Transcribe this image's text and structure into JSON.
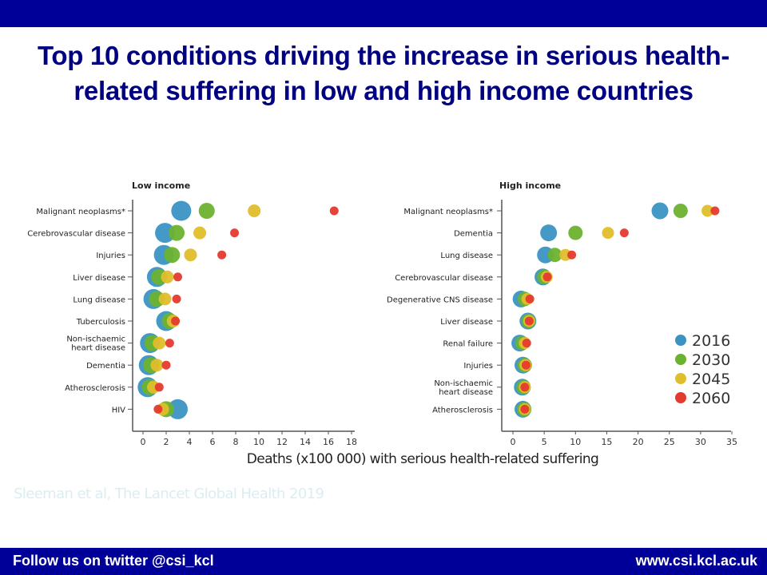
{
  "slide": {
    "title": "Top 10 conditions driving the increase in serious health-related suffering in low and high income countries",
    "common_xlabel": "Deaths (x100 000) with serious health-related suffering",
    "citation": "Sleeman et al, The Lancet Global Health 2019",
    "footer_left": "Follow us on twitter @csi_kcl",
    "footer_right": "www.csi.kcl.ac.uk",
    "colors": {
      "bar": "#000099",
      "title": "#000080"
    }
  },
  "chart_data": [
    {
      "type": "scatter",
      "subtype": "bubble-dot-plot",
      "title": "Low income",
      "xlabel": "Deaths (x100 000) with serious health-related suffering",
      "xlim": [
        0,
        18
      ],
      "xticks": [
        0,
        2,
        4,
        6,
        8,
        10,
        12,
        14,
        16,
        18
      ],
      "grid": false,
      "categories": [
        "Malignant neoplasms*",
        "Cerebrovascular disease",
        "Injuries",
        "Liver disease",
        "Lung disease",
        "Tuberculosis",
        "Non-ischaemic heart disease",
        "Dementia",
        "Atherosclerosis",
        "HIV"
      ],
      "series": [
        {
          "name": "2016",
          "color": "#3a93c3",
          "values": [
            3.3,
            1.9,
            1.8,
            1.2,
            0.9,
            2.0,
            0.6,
            0.5,
            0.4,
            3.0
          ]
        },
        {
          "name": "2030",
          "color": "#6bb22f",
          "values": [
            5.5,
            2.9,
            2.5,
            1.4,
            1.2,
            2.3,
            0.8,
            0.7,
            0.6,
            2.0
          ]
        },
        {
          "name": "2045",
          "color": "#e0be2b",
          "values": [
            9.6,
            4.9,
            4.1,
            2.1,
            1.9,
            2.6,
            1.4,
            1.2,
            0.9,
            1.7
          ]
        },
        {
          "name": "2060",
          "color": "#e53a2f",
          "values": [
            16.5,
            7.9,
            6.8,
            3.0,
            2.9,
            2.8,
            2.3,
            2.0,
            1.4,
            1.3
          ]
        }
      ]
    },
    {
      "type": "scatter",
      "subtype": "bubble-dot-plot",
      "title": "High income",
      "xlabel": "Deaths (x100 000) with serious health-related suffering",
      "xlim": [
        0,
        35
      ],
      "xticks": [
        0,
        5,
        10,
        15,
        20,
        25,
        30,
        35
      ],
      "grid": false,
      "legend": {
        "position": "bottom-right",
        "entries": [
          "2016",
          "2030",
          "2045",
          "2060"
        ]
      },
      "categories": [
        "Malignant neoplasms*",
        "Dementia",
        "Lung disease",
        "Cerebrovascular disease",
        "Degenerative CNS disease",
        "Liver disease",
        "Renal failure",
        "Injuries",
        "Non-ischaemic heart disease",
        "Atherosclerosis"
      ],
      "series": [
        {
          "name": "2016",
          "color": "#3a93c3",
          "values": [
            23.5,
            5.7,
            5.2,
            4.8,
            1.3,
            2.4,
            1.1,
            1.6,
            1.5,
            1.6
          ]
        },
        {
          "name": "2030",
          "color": "#6bb22f",
          "values": [
            26.8,
            10.0,
            6.7,
            5.0,
            1.9,
            2.5,
            1.5,
            1.9,
            1.7,
            1.8
          ]
        },
        {
          "name": "2045",
          "color": "#e0be2b",
          "values": [
            31.1,
            15.2,
            8.4,
            5.4,
            2.3,
            2.6,
            1.9,
            2.0,
            1.9,
            1.9
          ]
        },
        {
          "name": "2060",
          "color": "#e53a2f",
          "values": [
            32.3,
            17.8,
            9.4,
            5.5,
            2.7,
            2.6,
            2.2,
            2.1,
            1.9,
            1.9
          ]
        }
      ]
    }
  ]
}
